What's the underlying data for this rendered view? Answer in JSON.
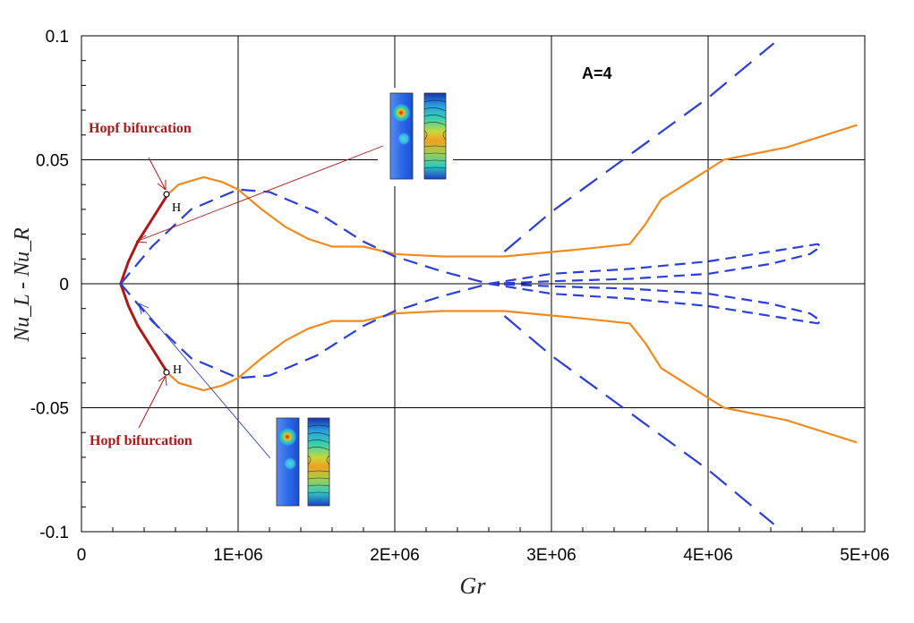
{
  "chart_data": {
    "type": "line",
    "xlabel": "Gr",
    "ylabel": "Nu_L - Nu_R",
    "xlim": [
      0,
      5000000
    ],
    "ylim": [
      -0.1,
      0.1
    ],
    "x_ticks": [
      "0",
      "1E+06",
      "2E+06",
      "3E+06",
      "4E+06",
      "5E+06"
    ],
    "y_ticks": [
      "0.1",
      "0.05",
      "0",
      "-0.05",
      "-0.1"
    ],
    "grid": true,
    "parameter_label": "A=4",
    "annotations": {
      "hopf_upper": "Hopf bifurcation",
      "hopf_lower": "Hopf bifurcation",
      "h_upper": "H",
      "h_lower": "H"
    },
    "colors": {
      "stable": "#b01818",
      "orange": "#f28a1e",
      "dashed": "#2b3fd8",
      "grid": "#000000"
    },
    "series": [
      {
        "style": "stable-upper",
        "x": [
          250000,
          300000,
          360000,
          450000,
          550000
        ],
        "y": [
          0,
          0.009,
          0.017,
          0.026,
          0.036
        ]
      },
      {
        "style": "stable-lower",
        "x": [
          250000,
          300000,
          360000,
          450000,
          550000
        ],
        "y": [
          0,
          -0.009,
          -0.017,
          -0.026,
          -0.036
        ]
      },
      {
        "style": "orange-outer-upper",
        "x": [
          550000,
          620000,
          780000,
          900000,
          1000000,
          1150000,
          1300000,
          1450000,
          1600000,
          1800000,
          2000000,
          2300000,
          2700000,
          3200000,
          3500000,
          3600000,
          3700000,
          3850000,
          4100000,
          4500000,
          4950000
        ],
        "y": [
          0.036,
          0.04,
          0.043,
          0.041,
          0.038,
          0.03,
          0.023,
          0.018,
          0.015,
          0.015,
          0.012,
          0.011,
          0.011,
          0.014,
          0.016,
          0.024,
          0.034,
          0.04,
          0.05,
          0.055,
          0.064
        ]
      },
      {
        "style": "orange-outer-lower",
        "x": [
          550000,
          620000,
          780000,
          900000,
          1000000,
          1150000,
          1300000,
          1450000,
          1600000,
          1800000,
          2000000,
          2300000,
          2700000,
          3200000,
          3500000,
          3600000,
          3700000,
          3850000,
          4100000,
          4500000,
          4950000
        ],
        "y": [
          -0.036,
          -0.04,
          -0.043,
          -0.041,
          -0.038,
          -0.03,
          -0.023,
          -0.018,
          -0.015,
          -0.015,
          -0.012,
          -0.011,
          -0.011,
          -0.014,
          -0.016,
          -0.024,
          -0.034,
          -0.04,
          -0.05,
          -0.055,
          -0.064
        ]
      },
      {
        "style": "dashed-short-upper",
        "x": [
          250000,
          450000,
          700000,
          1000000,
          1200000,
          1500000,
          1800000,
          2000000,
          2300000,
          2600000
        ],
        "y": [
          0,
          0.015,
          0.03,
          0.038,
          0.037,
          0.029,
          0.017,
          0.011,
          0.005,
          0
        ]
      },
      {
        "style": "dashed-short-lower",
        "x": [
          250000,
          450000,
          700000,
          1000000,
          1200000,
          1500000,
          1800000,
          2000000,
          2300000,
          2600000
        ],
        "y": [
          0,
          -0.015,
          -0.03,
          -0.038,
          -0.037,
          -0.029,
          -0.017,
          -0.011,
          -0.005,
          0
        ]
      },
      {
        "style": "dashed-loop-upper",
        "x": [
          2600000,
          3000000,
          3500000,
          4000000,
          4400000,
          4700000,
          4720000,
          4650000,
          4400000,
          4000000,
          3500000,
          3000000,
          2600000
        ],
        "y": [
          0,
          0.004,
          0.006,
          0.009,
          0.013,
          0.016,
          0.015,
          0.012,
          0.008,
          0.004,
          0.002,
          0.001,
          0
        ]
      },
      {
        "style": "dashed-loop-lower",
        "x": [
          2600000,
          3000000,
          3500000,
          4000000,
          4400000,
          4700000,
          4720000,
          4650000,
          4400000,
          4000000,
          3500000,
          3000000,
          2600000
        ],
        "y": [
          0,
          -0.004,
          -0.006,
          -0.009,
          -0.013,
          -0.016,
          -0.015,
          -0.012,
          -0.008,
          -0.004,
          -0.002,
          -0.001,
          0
        ]
      },
      {
        "style": "dashed-long-upper",
        "x": [
          2700000,
          3000000,
          3500000,
          4000000,
          4420000
        ],
        "y": [
          0.013,
          0.029,
          0.052,
          0.075,
          0.097
        ]
      },
      {
        "style": "dashed-long-lower",
        "x": [
          2700000,
          3000000,
          3500000,
          4000000,
          4420000
        ],
        "y": [
          -0.013,
          -0.029,
          -0.052,
          -0.075,
          -0.097
        ]
      }
    ]
  }
}
